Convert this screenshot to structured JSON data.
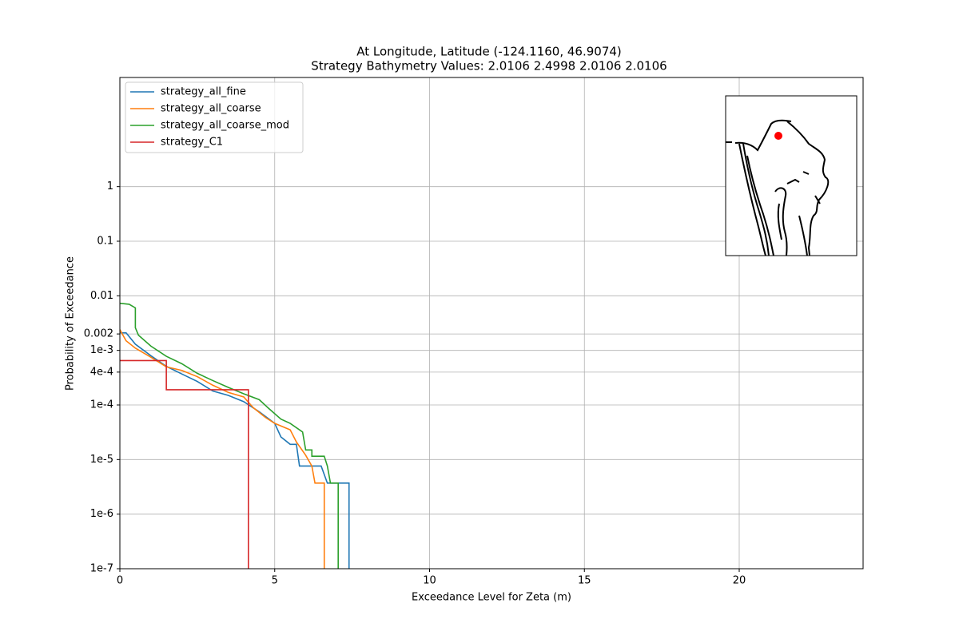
{
  "chart_data": {
    "type": "line",
    "title": "At Longitude, Latitude (-124.1160,  46.9074)",
    "subtitle": "Strategy Bathymetry Values:    2.0106    2.4998    2.0106    2.0106",
    "x_label": "Exceedance Level for Zeta (m)",
    "y_label": "Probability of Exceedance",
    "xlim": [
      0,
      24
    ],
    "ylim": [
      1e-07,
      100
    ],
    "log_y": true,
    "grid": true,
    "legend": "upper left",
    "xticks": [
      0,
      5,
      10,
      15,
      20
    ],
    "yticks": [
      {
        "value": 1e-07,
        "label": "1e-7"
      },
      {
        "value": 1e-06,
        "label": "1e-6"
      },
      {
        "value": 1e-05,
        "label": "1e-5"
      },
      {
        "value": 0.0001,
        "label": "1e-4"
      },
      {
        "value": 0.0004,
        "label": "4e-4"
      },
      {
        "value": 0.001,
        "label": "1e-3"
      },
      0.002,
      0.01,
      0.1,
      1
    ],
    "series": [
      {
        "name": "strategy_all_fine",
        "color": "#1f77b4",
        "x": [
          0,
          0.2,
          0.5,
          1,
          1.5,
          2,
          2.5,
          3,
          3.5,
          4,
          4.5,
          5,
          5.2,
          5.5,
          5.7,
          5.8,
          6.5,
          6.7,
          7.4,
          7.4
        ],
        "values": [
          0.0021,
          0.0021,
          0.0013,
          0.0008,
          0.00051,
          0.00037,
          0.00027,
          0.00018,
          0.00015,
          0.000115,
          7.5e-05,
          4.6e-05,
          2.6e-05,
          1.9e-05,
          1.9e-05,
          7.6e-06,
          7.6e-06,
          3.7e-06,
          3.7e-06,
          1e-07
        ]
      },
      {
        "name": "strategy_all_coarse",
        "color": "#ff7f0e",
        "x": [
          0,
          0.2,
          0.5,
          1,
          1.5,
          2,
          2.5,
          3,
          3.5,
          4,
          4.3,
          4.7,
          5,
          5.5,
          5.7,
          6.0,
          6.2,
          6.3,
          6.6,
          6.6
        ],
        "values": [
          0.0024,
          0.0015,
          0.0011,
          0.00075,
          0.0005,
          0.00043,
          0.00033,
          0.00023,
          0.00017,
          0.00014,
          9e-05,
          5.9e-05,
          4.6e-05,
          3.5e-05,
          2.1e-05,
          1.2e-05,
          7.6e-06,
          3.7e-06,
          3.7e-06,
          1e-07
        ]
      },
      {
        "name": "strategy_all_coarse_mod",
        "color": "#2ca02c",
        "x": [
          0,
          0.3,
          0.5,
          0.5,
          0.6,
          1,
          1.5,
          2,
          2.5,
          3,
          3.5,
          4,
          4.5,
          4.8,
          5.2,
          5.5,
          5.9,
          6.0,
          6.2,
          6.2,
          6.6,
          6.7,
          6.8,
          7.05,
          7.05
        ],
        "values": [
          0.0073,
          0.007,
          0.006,
          0.0026,
          0.0019,
          0.0012,
          0.00078,
          0.00057,
          0.00038,
          0.00028,
          0.00021,
          0.00016,
          0.000125,
          8.7e-05,
          5.5e-05,
          4.6e-05,
          3.2e-05,
          1.5e-05,
          1.5e-05,
          1.15e-05,
          1.15e-05,
          7.6e-06,
          3.7e-06,
          3.7e-06,
          1e-07
        ]
      },
      {
        "name": "strategy_C1",
        "color": "#d62728",
        "x": [
          0,
          1.5,
          1.5,
          4.15,
          4.15
        ],
        "values": [
          0.00065,
          0.00065,
          0.00019,
          0.00019,
          1e-07
        ]
      }
    ]
  }
}
